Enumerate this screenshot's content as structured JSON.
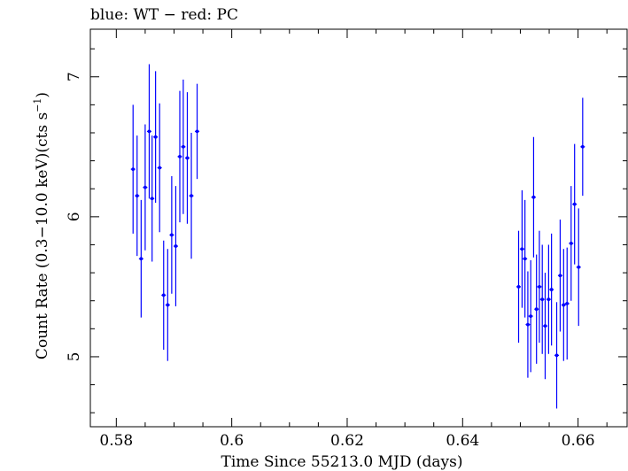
{
  "chart_data": {
    "type": "scatter",
    "title": "blue: WT − red: PC",
    "xlabel": "Time Since 55213.0 MJD (days)",
    "ylabel_main": "Count Rate (0.3−10.0 keV)(cts s",
    "ylabel_sup": "−1",
    "ylabel_close": ")",
    "xlim": [
      0.5755,
      0.6685
    ],
    "ylim": [
      4.5,
      7.34
    ],
    "xticks": [
      0.58,
      0.6,
      0.62,
      0.64,
      0.66
    ],
    "xtick_labels": [
      "0.58",
      "0.6",
      "0.62",
      "0.64",
      "0.66"
    ],
    "yticks": [
      5,
      6,
      7
    ],
    "ytick_labels": [
      "5",
      "6",
      "7"
    ],
    "series": [
      {
        "color": "#0000ff",
        "points": [
          {
            "x": 0.5829,
            "y": 6.34,
            "err": 0.46
          },
          {
            "x": 0.5836,
            "y": 6.15,
            "err": 0.43
          },
          {
            "x": 0.5843,
            "y": 5.7,
            "err": 0.42
          },
          {
            "x": 0.585,
            "y": 6.21,
            "err": 0.45
          },
          {
            "x": 0.5857,
            "y": 6.61,
            "err": 0.48
          },
          {
            "x": 0.5862,
            "y": 6.13,
            "err": 0.45
          },
          {
            "x": 0.5868,
            "y": 6.57,
            "err": 0.47
          },
          {
            "x": 0.5875,
            "y": 6.35,
            "err": 0.46
          },
          {
            "x": 0.5882,
            "y": 5.44,
            "err": 0.39
          },
          {
            "x": 0.5889,
            "y": 5.37,
            "err": 0.4
          },
          {
            "x": 0.5896,
            "y": 5.87,
            "err": 0.42
          },
          {
            "x": 0.5903,
            "y": 5.79,
            "err": 0.43
          },
          {
            "x": 0.591,
            "y": 6.43,
            "err": 0.47
          },
          {
            "x": 0.5916,
            "y": 6.5,
            "err": 0.48
          },
          {
            "x": 0.5923,
            "y": 6.42,
            "err": 0.47
          },
          {
            "x": 0.593,
            "y": 6.15,
            "err": 0.45
          },
          {
            "x": 0.594,
            "y": 6.61,
            "err": 0.34
          },
          {
            "x": 0.6497,
            "y": 5.5,
            "err": 0.4
          },
          {
            "x": 0.6503,
            "y": 5.77,
            "err": 0.42
          },
          {
            "x": 0.6508,
            "y": 5.7,
            "err": 0.42
          },
          {
            "x": 0.6513,
            "y": 5.23,
            "err": 0.38
          },
          {
            "x": 0.6518,
            "y": 5.29,
            "err": 0.4
          },
          {
            "x": 0.6523,
            "y": 6.14,
            "err": 0.43
          },
          {
            "x": 0.6528,
            "y": 5.34,
            "err": 0.39
          },
          {
            "x": 0.6533,
            "y": 5.5,
            "err": 0.4
          },
          {
            "x": 0.6538,
            "y": 5.41,
            "err": 0.39
          },
          {
            "x": 0.6543,
            "y": 5.22,
            "err": 0.38
          },
          {
            "x": 0.6549,
            "y": 5.41,
            "err": 0.39
          },
          {
            "x": 0.6554,
            "y": 5.48,
            "err": 0.4
          },
          {
            "x": 0.6563,
            "y": 5.01,
            "err": 0.38
          },
          {
            "x": 0.6569,
            "y": 5.58,
            "err": 0.4
          },
          {
            "x": 0.6575,
            "y": 5.37,
            "err": 0.4
          },
          {
            "x": 0.6581,
            "y": 5.38,
            "err": 0.4
          },
          {
            "x": 0.6588,
            "y": 5.81,
            "err": 0.41
          },
          {
            "x": 0.6594,
            "y": 6.09,
            "err": 0.43
          },
          {
            "x": 0.6601,
            "y": 5.64,
            "err": 0.42
          },
          {
            "x": 0.6608,
            "y": 6.5,
            "err": 0.35
          }
        ]
      }
    ],
    "grid": false,
    "legend": "none"
  }
}
